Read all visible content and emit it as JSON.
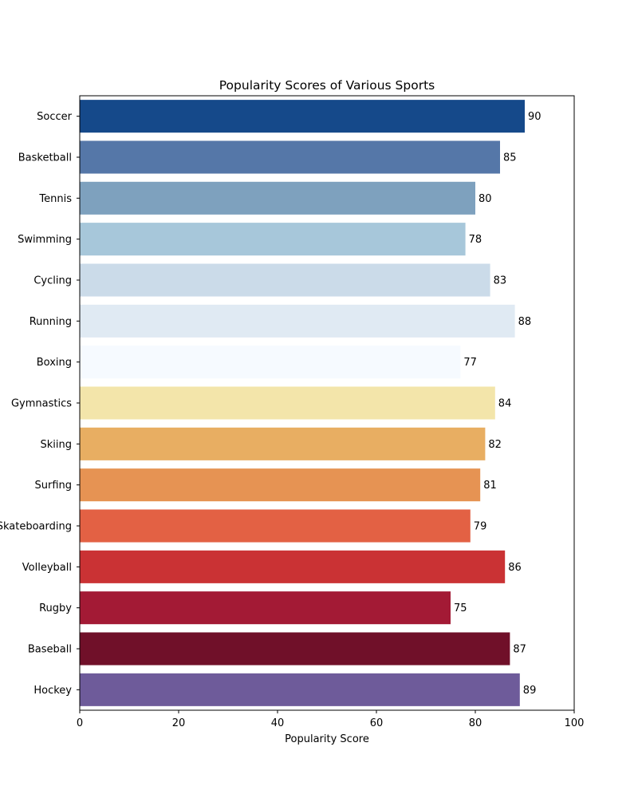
{
  "chart_data": {
    "type": "bar",
    "orientation": "horizontal",
    "title": "Popularity Scores of Various Sports",
    "xlabel": "Popularity Score",
    "ylabel": "",
    "xlim": [
      0,
      100
    ],
    "xticks": [
      0,
      20,
      40,
      60,
      80,
      100
    ],
    "grid": false,
    "legend": "none",
    "categories": [
      "Soccer",
      "Basketball",
      "Tennis",
      "Swimming",
      "Cycling",
      "Running",
      "Boxing",
      "Gymnastics",
      "Skiing",
      "Surfing",
      "Skateboarding",
      "Volleyball",
      "Rugby",
      "Baseball",
      "Hockey"
    ],
    "values": [
      90,
      85,
      80,
      78,
      83,
      88,
      77,
      84,
      82,
      81,
      79,
      86,
      75,
      87,
      89
    ],
    "colors": [
      "#15498a",
      "#5577a8",
      "#7ea1be",
      "#a7c7da",
      "#cbdbe9",
      "#e0eaf3",
      "#f6faff",
      "#f3e5aa",
      "#e8ae62",
      "#e69353",
      "#e36144",
      "#ca3234",
      "#a31a35",
      "#701029",
      "#6e5b9a"
    ],
    "data_labels": true
  }
}
